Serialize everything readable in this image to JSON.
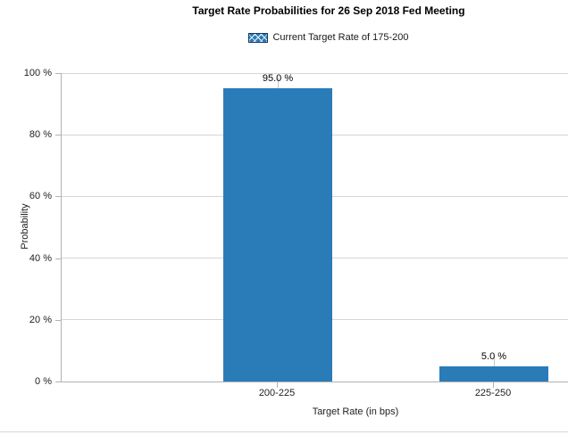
{
  "chart_data": {
    "type": "bar",
    "title": "Target Rate Probabilities for 26 Sep 2018 Fed Meeting",
    "series_name": "Current Target Rate of 175-200",
    "categories": [
      "200-225",
      "225-250"
    ],
    "values": [
      95.0,
      5.0
    ],
    "point_labels": [
      "95.0 %",
      "5.0 %"
    ],
    "xlabel": "Target Rate (in bps)",
    "ylabel": "Probability",
    "ylim": [
      0,
      100
    ],
    "y_ticks": [
      0,
      20,
      40,
      60,
      80,
      100
    ],
    "y_tick_labels": [
      "0 %",
      "20 %",
      "40 %",
      "60 %",
      "80 %",
      "100 %"
    ],
    "grid": "horizontal-only",
    "legend_position": "top-center",
    "bar_color": "#2a7cb8",
    "legend_swatch_fill": "#2a7cb8",
    "legend_swatch_border": "#16365c"
  }
}
